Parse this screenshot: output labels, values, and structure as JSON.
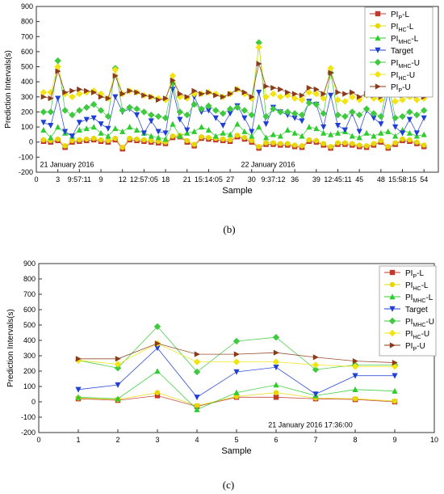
{
  "chart_data": [
    {
      "type": "line",
      "panel_label": "(b)",
      "xlabel": "Sample",
      "ylabel": "Prediction Intervals(s)",
      "ylim": [
        -200,
        900
      ],
      "yticks": [
        -200,
        -100,
        0,
        100,
        200,
        300,
        400,
        500,
        600,
        700,
        800,
        900
      ],
      "xlim": [
        0,
        56
      ],
      "xtick_positions": [
        0,
        3,
        6,
        9,
        12,
        15,
        18,
        21,
        24,
        27,
        30,
        33,
        36,
        39,
        42,
        45,
        48,
        51,
        54
      ],
      "xtick_labels": [
        "0",
        "3",
        "9:57:11",
        "9",
        "12",
        "12:57:05",
        "18",
        "21",
        "15:14:05",
        "27",
        "30",
        "9:37:12",
        "36",
        "39",
        "12:45:11",
        "45",
        "48",
        "15:58:15",
        "54"
      ],
      "annotations": [
        {
          "text": "21 January 2016",
          "x": 0.5,
          "y": -150
        },
        {
          "text": "22 January 2016",
          "x": 28.5,
          "y": -150
        }
      ],
      "grid": false,
      "legend": "top-right",
      "x": [
        1,
        2,
        3,
        4,
        5,
        6,
        7,
        8,
        9,
        10,
        11,
        12,
        13,
        14,
        15,
        16,
        17,
        18,
        19,
        20,
        21,
        22,
        23,
        24,
        25,
        26,
        27,
        28,
        29,
        30,
        31,
        32,
        33,
        34,
        35,
        36,
        37,
        38,
        39,
        40,
        41,
        42,
        43,
        44,
        45,
        46,
        47,
        48,
        49,
        50,
        51,
        52,
        53,
        54
      ],
      "series": [
        {
          "name": "PI_P-L",
          "color": "#c0392b",
          "marker": "square",
          "values": [
            5,
            0,
            10,
            -35,
            0,
            5,
            10,
            15,
            5,
            0,
            15,
            -45,
            15,
            10,
            5,
            0,
            -5,
            -10,
            30,
            35,
            0,
            -25,
            25,
            20,
            15,
            10,
            5,
            35,
            20,
            0,
            -40,
            -15,
            -15,
            -20,
            -20,
            -30,
            -35,
            5,
            0,
            -20,
            -40,
            -15,
            -15,
            -20,
            -30,
            -35,
            -20,
            0,
            -40,
            -15,
            10,
            5,
            -10,
            -30
          ]
        },
        {
          "name": "PI_HC-L",
          "color": "#e6d800",
          "marker": "circle",
          "values": [
            15,
            10,
            20,
            -25,
            10,
            15,
            20,
            25,
            15,
            10,
            25,
            -35,
            25,
            20,
            15,
            10,
            5,
            0,
            40,
            45,
            10,
            -15,
            35,
            30,
            25,
            20,
            15,
            45,
            30,
            10,
            -30,
            -5,
            -5,
            -10,
            -10,
            -20,
            -25,
            15,
            10,
            -10,
            -30,
            -5,
            -5,
            -10,
            -20,
            -25,
            -10,
            10,
            -30,
            -5,
            20,
            15,
            0,
            -20
          ]
        },
        {
          "name": "PI_MHC-L",
          "color": "#2ecc2e",
          "marker": "triangle-up",
          "values": [
            80,
            30,
            100,
            60,
            40,
            80,
            90,
            100,
            60,
            40,
            90,
            70,
            100,
            80,
            60,
            40,
            30,
            20,
            120,
            40,
            60,
            70,
            100,
            80,
            40,
            60,
            50,
            120,
            70,
            40,
            100,
            30,
            50,
            40,
            80,
            60,
            40,
            100,
            90,
            60,
            50,
            60,
            70,
            40,
            30,
            60,
            40,
            60,
            70,
            40,
            80,
            60,
            40,
            50
          ]
        },
        {
          "name": "Target",
          "color": "#1f3fd6",
          "marker": "triangle-down",
          "values": [
            130,
            110,
            290,
            70,
            40,
            130,
            150,
            160,
            120,
            90,
            300,
            200,
            220,
            180,
            60,
            140,
            70,
            60,
            350,
            150,
            80,
            300,
            200,
            210,
            160,
            110,
            190,
            240,
            160,
            70,
            330,
            120,
            230,
            200,
            180,
            160,
            140,
            270,
            250,
            100,
            310,
            110,
            80,
            190,
            70,
            210,
            160,
            120,
            330,
            100,
            60,
            150,
            60,
            160
          ]
        },
        {
          "name": "PI_MHC-U",
          "color": "#3ec93e",
          "marker": "diamond",
          "values": [
            200,
            200,
            540,
            210,
            180,
            210,
            230,
            250,
            210,
            170,
            490,
            210,
            230,
            220,
            200,
            180,
            170,
            160,
            390,
            200,
            180,
            250,
            220,
            240,
            210,
            190,
            220,
            230,
            210,
            180,
            660,
            170,
            220,
            200,
            200,
            190,
            180,
            260,
            250,
            190,
            460,
            180,
            170,
            200,
            180,
            220,
            190,
            170,
            400,
            160,
            170,
            200,
            180,
            210
          ]
        },
        {
          "name": "PI_HC-U",
          "color": "#f1e40f",
          "marker": "diamond",
          "values": [
            330,
            330,
            500,
            320,
            300,
            320,
            330,
            340,
            320,
            290,
            480,
            320,
            340,
            330,
            310,
            300,
            290,
            280,
            440,
            300,
            290,
            320,
            320,
            330,
            320,
            300,
            320,
            350,
            320,
            290,
            630,
            300,
            320,
            300,
            310,
            290,
            280,
            330,
            320,
            290,
            490,
            280,
            270,
            300,
            280,
            310,
            290,
            280,
            440,
            270,
            280,
            300,
            280,
            290
          ]
        },
        {
          "name": "PI_P-U",
          "color": "#8b3a1a",
          "marker": "triangle-right",
          "values": [
            300,
            290,
            470,
            330,
            340,
            350,
            340,
            330,
            300,
            290,
            440,
            320,
            340,
            330,
            310,
            300,
            280,
            290,
            410,
            320,
            300,
            340,
            320,
            330,
            310,
            300,
            320,
            350,
            330,
            300,
            520,
            370,
            360,
            350,
            330,
            320,
            310,
            360,
            350,
            320,
            460,
            330,
            320,
            330,
            300,
            320,
            310,
            300,
            410,
            320,
            310,
            320,
            310,
            300
          ]
        }
      ]
    },
    {
      "type": "line",
      "panel_label": "(c)",
      "xlabel": "Sample",
      "ylabel": "Prediction Intervals(s)",
      "ylim": [
        -200,
        900
      ],
      "yticks": [
        -200,
        -100,
        0,
        100,
        200,
        300,
        400,
        500,
        600,
        700,
        800,
        900
      ],
      "xlim": [
        0,
        10
      ],
      "xtick_positions": [
        0,
        1,
        2,
        3,
        4,
        5,
        6,
        7,
        8,
        9,
        10
      ],
      "xtick_labels": [
        "0",
        "1",
        "2",
        "3",
        "4",
        "5",
        "6",
        "7",
        "8",
        "9",
        "10"
      ],
      "annotations": [
        {
          "text": "21 January 2016   17:36:00",
          "x": 5.8,
          "y": -150
        }
      ],
      "grid": false,
      "legend": "top-right",
      "x": [
        1,
        2,
        3,
        4,
        5,
        6,
        7,
        8,
        9
      ],
      "series": [
        {
          "name": "PI_P-L",
          "color": "#c0392b",
          "marker": "square",
          "values": [
            20,
            10,
            40,
            -30,
            30,
            30,
            20,
            15,
            0
          ]
        },
        {
          "name": "PI_HC-L",
          "color": "#e6d800",
          "marker": "circle",
          "values": [
            25,
            15,
            60,
            -25,
            35,
            60,
            25,
            20,
            5
          ]
        },
        {
          "name": "PI_MHC-L",
          "color": "#2ecc2e",
          "marker": "triangle-up",
          "values": [
            30,
            20,
            200,
            -50,
            60,
            110,
            40,
            80,
            70
          ]
        },
        {
          "name": "Target",
          "color": "#1f3fd6",
          "marker": "triangle-down",
          "values": [
            80,
            110,
            350,
            30,
            195,
            225,
            50,
            170,
            170
          ]
        },
        {
          "name": "PI_MHC-U",
          "color": "#3ec93e",
          "marker": "diamond",
          "values": [
            270,
            220,
            490,
            195,
            395,
            420,
            210,
            240,
            240
          ]
        },
        {
          "name": "PI_HC-U",
          "color": "#f1e40f",
          "marker": "diamond",
          "values": [
            270,
            245,
            380,
            260,
            260,
            260,
            240,
            230,
            230
          ]
        },
        {
          "name": "PI_P-U",
          "color": "#8b3a1a",
          "marker": "triangle-right",
          "values": [
            280,
            280,
            380,
            310,
            310,
            320,
            290,
            265,
            255
          ]
        }
      ]
    }
  ]
}
